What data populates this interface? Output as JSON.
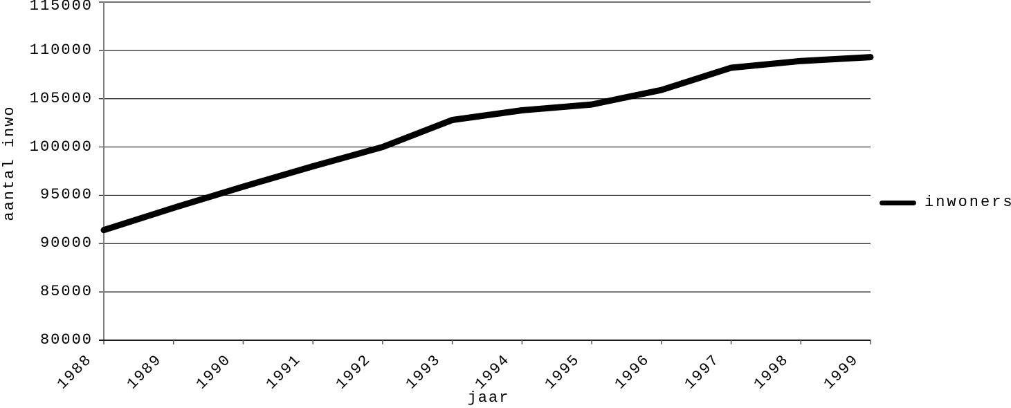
{
  "chart_data": {
    "type": "line",
    "title": "",
    "xlabel": "jaar",
    "ylabel": "aantal inwo",
    "categories": [
      "1988",
      "1989",
      "1990",
      "1991",
      "1992",
      "1993",
      "1994",
      "1995",
      "1996",
      "1997",
      "1998",
      "1999"
    ],
    "series": [
      {
        "name": "inwoners",
        "values": [
          91400,
          93700,
          95900,
          98000,
          100000,
          102800,
          103800,
          104400,
          105900,
          108200,
          108900,
          109300
        ]
      }
    ],
    "ylim": [
      80000,
      115000
    ],
    "ytick_step": 5000,
    "ytick_labels": [
      "80000",
      "85000",
      "90000",
      "95000",
      "100000",
      "105000",
      "110000",
      "115000"
    ],
    "grid": true,
    "legend_position": "right-middle"
  },
  "legend": {
    "items": [
      {
        "label": "inwoners",
        "marker": "thick-black-line"
      }
    ]
  },
  "colors": {
    "background": "#ffffff",
    "series_line": "#000000",
    "gridline": "#1a1a1a",
    "x_axis_line": "#1a1a1a",
    "y_axis_line": "#808080",
    "tick_mark": "#555555",
    "text": "#000000"
  }
}
